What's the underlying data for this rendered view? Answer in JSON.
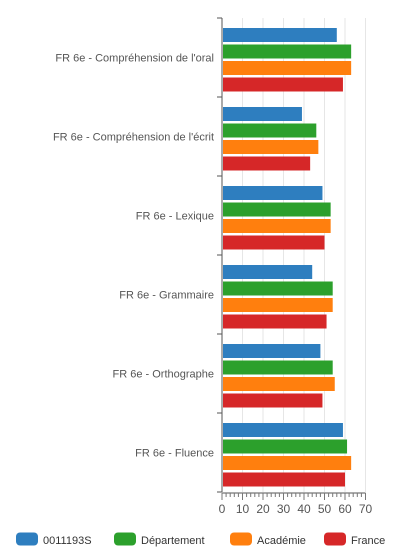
{
  "chart_data": {
    "type": "bar",
    "orientation": "horizontal",
    "categories": [
      "FR 6e - Compréhension de l'oral",
      "FR 6e - Compréhension de l'écrit",
      "FR 6e - Lexique",
      "FR 6e - Grammaire",
      "FR 6e - Orthographe",
      "FR 6e - Fluence"
    ],
    "series": [
      {
        "name": "0011193S",
        "color": "#2e7ebf",
        "values": [
          56,
          39,
          49,
          44,
          48,
          59
        ]
      },
      {
        "name": "Département",
        "color": "#2ca02c",
        "values": [
          63,
          46,
          53,
          54,
          54,
          61
        ]
      },
      {
        "name": "Académie",
        "color": "#ff7f0e",
        "values": [
          63,
          47,
          53,
          54,
          55,
          63
        ]
      },
      {
        "name": "France",
        "color": "#d62728",
        "values": [
          59,
          43,
          50,
          51,
          49,
          60
        ]
      }
    ],
    "xlim": [
      0,
      70
    ],
    "xticks": [
      0,
      10,
      20,
      30,
      40,
      50,
      60,
      70
    ],
    "minor_tick_step": 2,
    "grid": true,
    "legend": "bottom"
  }
}
